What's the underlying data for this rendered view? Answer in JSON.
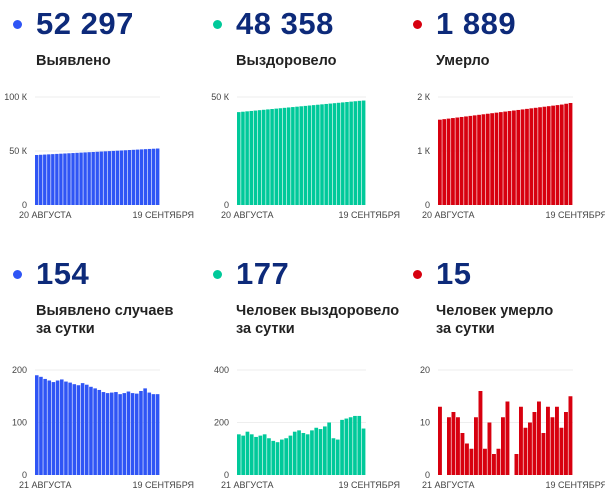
{
  "colors": {
    "blue": "#2f55f5",
    "green": "#00c99a",
    "red": "#d7000f",
    "title": "#0d2a7a"
  },
  "panels": [
    {
      "value": "52 297",
      "label_lines": [
        "Выявлено"
      ],
      "color": "blue"
    },
    {
      "value": "48 358",
      "label_lines": [
        "Выздоровело"
      ],
      "color": "green"
    },
    {
      "value": "1 889",
      "label_lines": [
        "Умерло"
      ],
      "color": "red"
    },
    {
      "value": "154",
      "label_lines": [
        "Выявлено случаев",
        "за сутки"
      ],
      "color": "blue"
    },
    {
      "value": "177",
      "label_lines": [
        "Человек выздоровело",
        "за сутки"
      ],
      "color": "green"
    },
    {
      "value": "15",
      "label_lines": [
        "Человек умерло",
        "за сутки"
      ],
      "color": "red"
    }
  ],
  "chart_data": [
    {
      "type": "bar",
      "title": "Выявлено",
      "xlabels": [
        "20 АВГУСТА",
        "19 СЕНТЯБРЯ"
      ],
      "yticks": [
        0,
        50000,
        100000
      ],
      "ytick_labels": [
        "0",
        "50 К",
        "100 К"
      ],
      "ylim": [
        0,
        100000
      ],
      "values": [
        46300,
        46500,
        46700,
        46900,
        47100,
        47300,
        47500,
        47700,
        47900,
        48100,
        48300,
        48500,
        48700,
        48900,
        49100,
        49300,
        49500,
        49700,
        49900,
        50100,
        50300,
        50500,
        50700,
        50900,
        51100,
        51300,
        51500,
        51700,
        51900,
        52100,
        52297
      ]
    },
    {
      "type": "bar",
      "title": "Выздоровело",
      "xlabels": [
        "20 АВГУСТА",
        "19 СЕНТЯБРЯ"
      ],
      "yticks": [
        0,
        50000
      ],
      "ytick_labels": [
        "0",
        "50 К"
      ],
      "ylim": [
        0,
        50000
      ],
      "values": [
        43000,
        43180,
        43360,
        43540,
        43720,
        43900,
        44080,
        44260,
        44440,
        44620,
        44800,
        44980,
        45160,
        45340,
        45520,
        45700,
        45880,
        46060,
        46240,
        46420,
        46600,
        46780,
        46960,
        47140,
        47320,
        47500,
        47680,
        47860,
        48040,
        48220,
        48358
      ]
    },
    {
      "type": "bar",
      "title": "Умерло",
      "xlabels": [
        "20 АВГУСТА",
        "19 СЕНТЯБРЯ"
      ],
      "yticks": [
        0,
        1000,
        2000
      ],
      "ytick_labels": [
        "0",
        "1 К",
        "2 К"
      ],
      "ylim": [
        0,
        2000
      ],
      "values": [
        1580,
        1590,
        1600,
        1610,
        1620,
        1630,
        1640,
        1650,
        1660,
        1670,
        1680,
        1690,
        1700,
        1710,
        1720,
        1730,
        1740,
        1750,
        1760,
        1770,
        1780,
        1790,
        1800,
        1810,
        1820,
        1830,
        1840,
        1850,
        1860,
        1875,
        1889
      ]
    },
    {
      "type": "bar",
      "title": "Выявлено случаев за сутки",
      "xlabels": [
        "21 АВГУСТА",
        "19 СЕНТЯБРЯ"
      ],
      "yticks": [
        0,
        100,
        200
      ],
      "ytick_labels": [
        "0",
        "100",
        "200"
      ],
      "ylim": [
        0,
        200
      ],
      "values": [
        190,
        187,
        183,
        180,
        177,
        180,
        182,
        178,
        176,
        173,
        171,
        175,
        172,
        168,
        165,
        162,
        158,
        156,
        157,
        158,
        154,
        156,
        159,
        156,
        155,
        160,
        165,
        157,
        154,
        154
      ]
    },
    {
      "type": "bar",
      "title": "Человек выздоровело за сутки",
      "xlabels": [
        "21 АВГУСТА",
        "19 СЕНТЯБРЯ"
      ],
      "yticks": [
        0,
        200,
        400
      ],
      "ytick_labels": [
        "0",
        "200",
        "400"
      ],
      "ylim": [
        0,
        400
      ],
      "values": [
        155,
        150,
        165,
        155,
        145,
        150,
        155,
        140,
        130,
        125,
        135,
        140,
        150,
        165,
        170,
        160,
        155,
        170,
        180,
        175,
        185,
        200,
        140,
        135,
        210,
        215,
        220,
        225,
        225,
        177
      ]
    },
    {
      "type": "bar",
      "title": "Человек умерло за сутки",
      "xlabels": [
        "21 АВГУСТА",
        "19 СЕНТЯБРЯ"
      ],
      "yticks": [
        0,
        10,
        20
      ],
      "ytick_labels": [
        "0",
        "10",
        "20"
      ],
      "ylim": [
        0,
        20
      ],
      "values": [
        13,
        0,
        11,
        12,
        11,
        8,
        6,
        5,
        11,
        16,
        5,
        10,
        4,
        5,
        11,
        14,
        0,
        4,
        13,
        9,
        10,
        12,
        14,
        8,
        13,
        11,
        13,
        9,
        12,
        15
      ]
    }
  ]
}
